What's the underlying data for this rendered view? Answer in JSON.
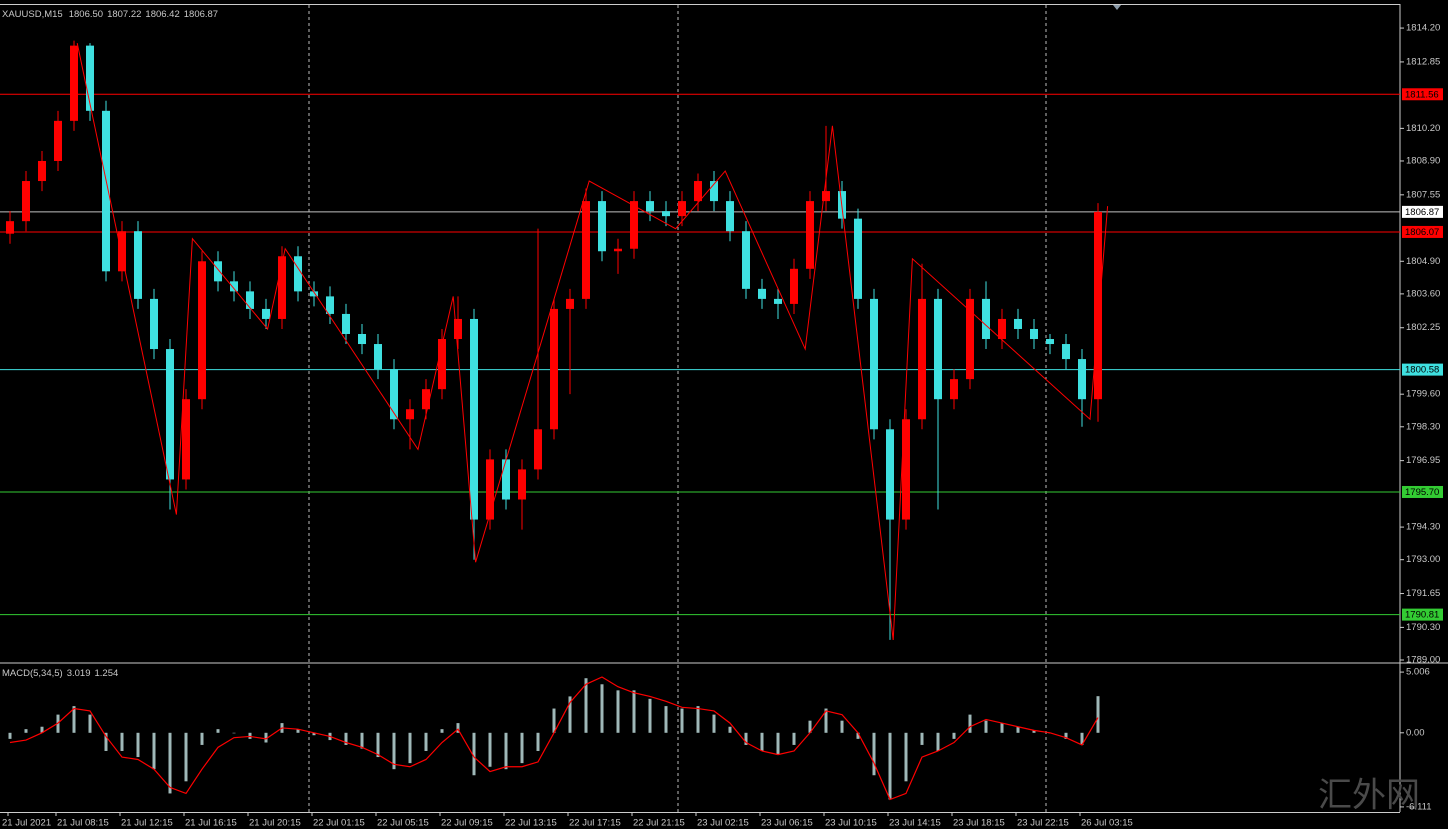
{
  "chart_data": [
    {
      "type": "candlestick",
      "title": "XAUUSD,M15",
      "ohlc_readout": [
        "1806.50",
        "1807.22",
        "1806.42",
        "1806.87"
      ],
      "categories": [
        "21 Jul 2021",
        null,
        null,
        "21 Jul 08:15",
        null,
        null,
        null,
        "21 Jul 12:15",
        null,
        null,
        null,
        "21 Jul 16:15",
        null,
        null,
        null,
        "21 Jul 20:15",
        null,
        null,
        null,
        "22 Jul 01:15",
        null,
        null,
        null,
        "22 Jul 05:15",
        null,
        null,
        null,
        "22 Jul 09:15",
        null,
        null,
        null,
        "22 Jul 13:15",
        null,
        null,
        null,
        "22 Jul 17:15",
        null,
        null,
        null,
        "22 Jul 21:15",
        null,
        null,
        null,
        "23 Jul 02:15",
        null,
        null,
        null,
        "23 Jul 06:15",
        null,
        null,
        null,
        "23 Jul 10:15",
        null,
        null,
        null,
        "23 Jul 14:15",
        null,
        null,
        null,
        "23 Jul 18:15",
        null,
        null,
        null,
        "23 Jul 22:15",
        null,
        null,
        null,
        "26 Jul 03:15",
        null
      ],
      "open": [
        1806.0,
        1806.5,
        1808.1,
        1808.9,
        1810.5,
        1813.5,
        1810.9,
        1804.5,
        1806.1,
        1803.4,
        1801.4,
        1796.2,
        1799.4,
        1804.9,
        1804.1,
        1803.7,
        1803.0,
        1802.6,
        1805.1,
        1803.7,
        1803.5,
        1802.8,
        1802.0,
        1801.6,
        1800.6,
        1798.6,
        1799.0,
        1799.8,
        1801.8,
        1802.6,
        1794.6,
        1797.0,
        1795.4,
        1796.6,
        1798.2,
        1803.0,
        1803.4,
        1807.3,
        1805.3,
        1805.4,
        1807.3,
        1806.9,
        1806.7,
        1807.3,
        1808.1,
        1807.3,
        1806.1,
        1803.8,
        1803.4,
        1803.2,
        1804.6,
        1807.3,
        1807.7,
        1806.6,
        1803.4,
        1798.2,
        1794.6,
        1798.6,
        1803.4,
        1799.4,
        1800.2,
        1803.4,
        1801.8,
        1802.6,
        1802.2,
        1801.8,
        1801.6,
        1801.0,
        1799.4
      ],
      "high": [
        1806.9,
        1808.5,
        1809.3,
        1810.9,
        1813.7,
        1813.6,
        1811.3,
        1806.5,
        1806.5,
        1803.8,
        1801.8,
        1799.8,
        1805.3,
        1805.3,
        1804.5,
        1804.1,
        1803.4,
        1805.5,
        1805.5,
        1804.1,
        1803.9,
        1803.2,
        1802.4,
        1802.0,
        1801.0,
        1799.4,
        1800.2,
        1802.2,
        1803.5,
        1803.0,
        1797.4,
        1797.4,
        1797.0,
        1806.2,
        1803.4,
        1803.8,
        1807.8,
        1807.7,
        1805.8,
        1807.7,
        1807.7,
        1807.3,
        1807.7,
        1808.4,
        1808.5,
        1807.7,
        1806.5,
        1804.2,
        1803.8,
        1805.0,
        1807.7,
        1810.3,
        1808.1,
        1807.0,
        1803.8,
        1798.6,
        1799.0,
        1804.8,
        1803.8,
        1800.6,
        1803.8,
        1804.1,
        1803.0,
        1803.0,
        1802.6,
        1802.0,
        1802.0,
        1801.4,
        1807.22
      ],
      "low": [
        1805.6,
        1806.1,
        1807.7,
        1808.5,
        1810.1,
        1810.5,
        1804.1,
        1804.1,
        1803.0,
        1801.0,
        1795.0,
        1795.8,
        1799.0,
        1803.7,
        1803.3,
        1802.6,
        1802.2,
        1802.2,
        1803.3,
        1803.1,
        1802.4,
        1801.6,
        1801.2,
        1800.2,
        1798.2,
        1797.4,
        1798.6,
        1799.4,
        1801.4,
        1793.0,
        1794.2,
        1795.0,
        1794.2,
        1796.2,
        1797.8,
        1799.6,
        1803.0,
        1804.9,
        1804.4,
        1805.0,
        1806.5,
        1806.3,
        1806.3,
        1806.9,
        1806.9,
        1805.7,
        1803.4,
        1803.0,
        1802.6,
        1802.8,
        1804.2,
        1806.9,
        1806.2,
        1803.0,
        1797.8,
        1789.8,
        1794.2,
        1798.2,
        1795.0,
        1799.0,
        1799.8,
        1801.4,
        1801.4,
        1801.8,
        1801.4,
        1801.2,
        1800.6,
        1798.3,
        1798.5
      ],
      "close": [
        1806.5,
        1808.1,
        1808.9,
        1810.5,
        1813.5,
        1810.9,
        1804.5,
        1806.1,
        1803.4,
        1801.4,
        1796.2,
        1799.4,
        1804.9,
        1804.1,
        1803.7,
        1803.0,
        1802.6,
        1805.1,
        1803.7,
        1803.5,
        1802.8,
        1802.0,
        1801.6,
        1800.6,
        1798.6,
        1799.0,
        1799.8,
        1801.8,
        1802.6,
        1794.6,
        1797.0,
        1795.4,
        1796.6,
        1798.2,
        1803.0,
        1803.4,
        1807.3,
        1805.3,
        1805.4,
        1807.3,
        1806.9,
        1806.7,
        1807.3,
        1808.1,
        1807.3,
        1806.1,
        1803.8,
        1803.4,
        1803.2,
        1804.6,
        1807.3,
        1807.7,
        1806.6,
        1803.4,
        1798.2,
        1794.6,
        1798.6,
        1803.4,
        1799.4,
        1800.2,
        1803.4,
        1801.8,
        1802.6,
        1802.2,
        1801.8,
        1801.6,
        1801.0,
        1799.4,
        1806.87
      ],
      "up_color": "#ff0000",
      "down_color": "#3fe0e0",
      "zigzag": {
        "color": "#ff0000",
        "x": [
          4.2,
          10.4,
          11.4,
          16.1,
          17.2,
          25.5,
          27.7,
          29.1,
          36.2,
          41.6,
          44.7,
          49.7,
          51.4,
          55.2,
          56.4,
          67.5,
          68.6
        ],
        "y": [
          1813.6,
          1794.8,
          1805.8,
          1802.2,
          1805.4,
          1797.4,
          1803.5,
          1792.9,
          1808.1,
          1806.2,
          1808.5,
          1801.4,
          1810.3,
          1789.8,
          1805.0,
          1798.6,
          1807.1
        ]
      },
      "levels": [
        {
          "value": 1811.56,
          "color": "#ff0000"
        },
        {
          "value": 1806.87,
          "color": "#c0c0c0"
        },
        {
          "value": 1806.07,
          "color": "#ff0000"
        },
        {
          "value": 1800.58,
          "color": "#3fe0e0"
        },
        {
          "value": 1795.7,
          "label": "1795.70",
          "color": "#33cc33"
        },
        {
          "value": 1790.81,
          "color": "#33cc33"
        }
      ],
      "ylim": [
        1788.92,
        1815.12
      ],
      "yticks": [
        {
          "value": 1814.2,
          "label": "1814.20"
        },
        1812.85,
        {
          "value": 1810.2,
          "label": "1810.20"
        },
        {
          "value": 1808.9,
          "label": "1808.90"
        },
        1807.55,
        {
          "value": 1804.9,
          "label": "1804.90"
        },
        {
          "value": 1803.6,
          "label": "1803.60"
        },
        1802.25,
        {
          "value": 1799.6,
          "label": "1799.60"
        },
        {
          "value": 1798.3,
          "label": "1798.30"
        },
        1796.95,
        {
          "value": 1794.3,
          "label": "1794.30"
        },
        {
          "value": 1793,
          "label": "1793.00"
        },
        1791.65,
        {
          "value": 1790.3,
          "label": "1790.30"
        },
        {
          "value": 1789,
          "label": "1789.00"
        }
      ]
    },
    {
      "type": "macd",
      "title": "MACD(5,34,5)",
      "series": [
        {
          "color": "#9fb8b8",
          "values": [
            -0.5,
            0.3,
            0.5,
            1.5,
            2.2,
            1.5,
            -1.5,
            -1.5,
            -2.0,
            -3.0,
            -5.0,
            -4.0,
            -1.0,
            0.3,
            0.0,
            -0.5,
            -0.8,
            0.8,
            0.3,
            -0.2,
            -0.6,
            -1.0,
            -1.3,
            -2.0,
            -3.0,
            -2.5,
            -1.5,
            0.3,
            0.8,
            -3.5,
            -2.8,
            -3.0,
            -2.5,
            -1.5,
            2.0,
            3.0,
            4.5,
            4.0,
            3.5,
            3.5,
            2.8,
            2.2,
            2.0,
            2.2,
            1.5,
            0.5,
            -1.0,
            -1.5,
            -1.8,
            -1.0,
            1.0,
            2.0,
            1.0,
            -0.5,
            -3.5,
            -5.5,
            -4.0,
            -1.0,
            -1.5,
            -0.5,
            1.5,
            1.0,
            0.8,
            0.5,
            0.2,
            0.0,
            -0.5,
            -1.0,
            3.019
          ]
        },
        {
          "color": "#ff0000",
          "values": [
            -0.8,
            -0.6,
            0.0,
            0.8,
            2.0,
            1.8,
            -0.3,
            -2.0,
            -2.2,
            -3.0,
            -4.5,
            -5.0,
            -3.0,
            -1.2,
            -0.4,
            -0.3,
            -0.5,
            0.4,
            0.3,
            0.0,
            -0.3,
            -0.8,
            -1.2,
            -1.8,
            -2.6,
            -2.8,
            -2.2,
            -0.8,
            0.3,
            -2.0,
            -3.2,
            -2.8,
            -2.8,
            -2.4,
            0.0,
            2.5,
            4.0,
            4.6,
            3.8,
            3.3,
            3.0,
            2.6,
            2.1,
            2.0,
            1.8,
            0.8,
            -0.8,
            -1.5,
            -1.8,
            -1.5,
            0.0,
            1.8,
            1.5,
            0.0,
            -2.5,
            -5.5,
            -5.0,
            -2.0,
            -1.5,
            -0.8,
            0.5,
            1.1,
            0.8,
            0.5,
            0.2,
            0.0,
            -0.4,
            -1.0,
            1.254
          ]
        }
      ],
      "ylim": [
        -6.53,
        5.59
      ],
      "yticks": [
        5.006,
        {
          "value": 0,
          "label": "0.00"
        },
        -6.111
      ]
    }
  ],
  "watermark": "汇外网"
}
